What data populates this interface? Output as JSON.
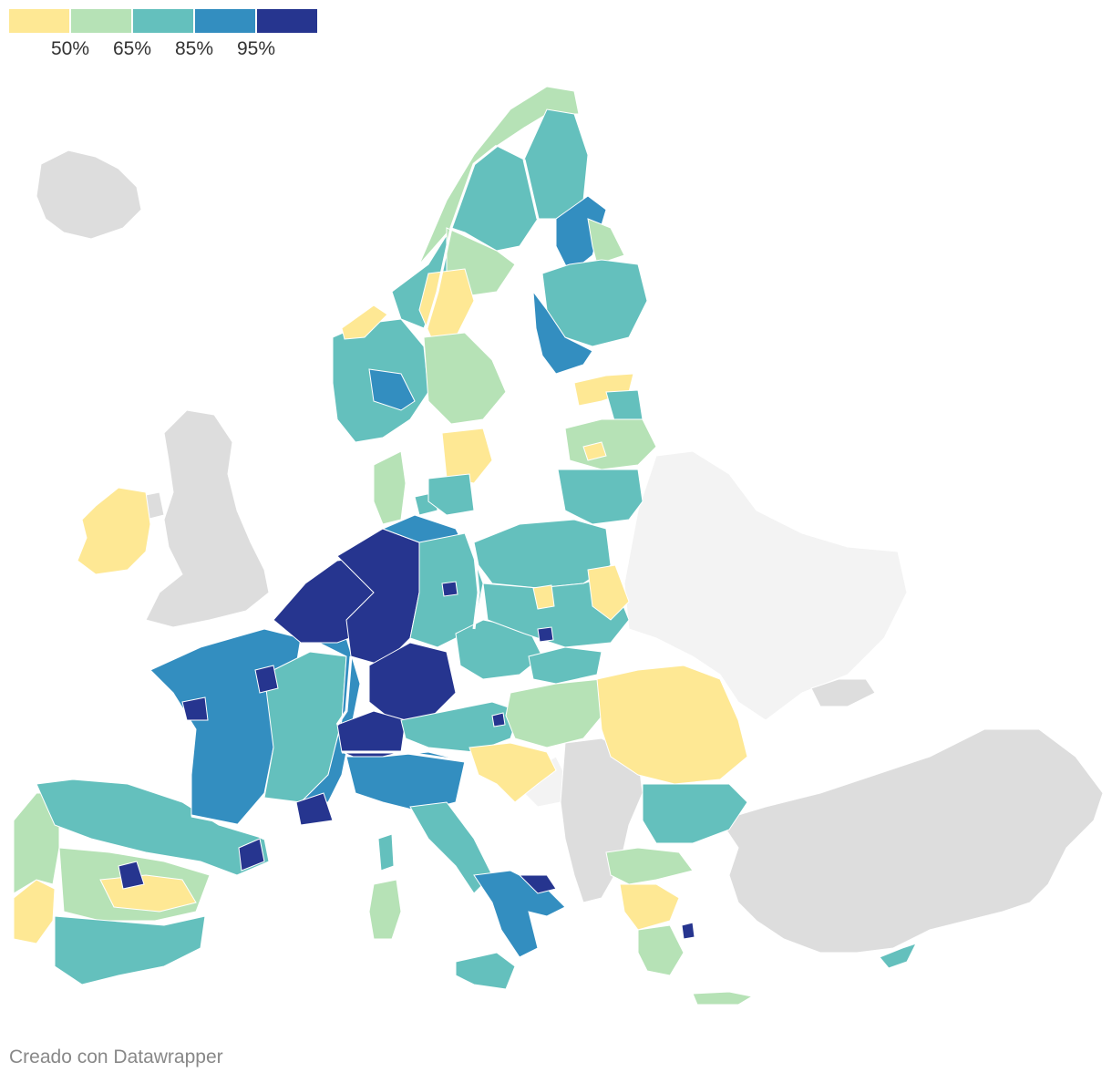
{
  "legend": {
    "colors": [
      "#fee894",
      "#b6e2b6",
      "#64c0bd",
      "#338ec0",
      "#26358f"
    ],
    "labels": [
      "50%",
      "65%",
      "85%",
      "95%"
    ]
  },
  "map_colors": {
    "no_data": "#dddddd",
    "outside": "#f3f3f3",
    "border": "#ffffff"
  },
  "footer": {
    "credit": "Creado con Datawrapper"
  }
}
